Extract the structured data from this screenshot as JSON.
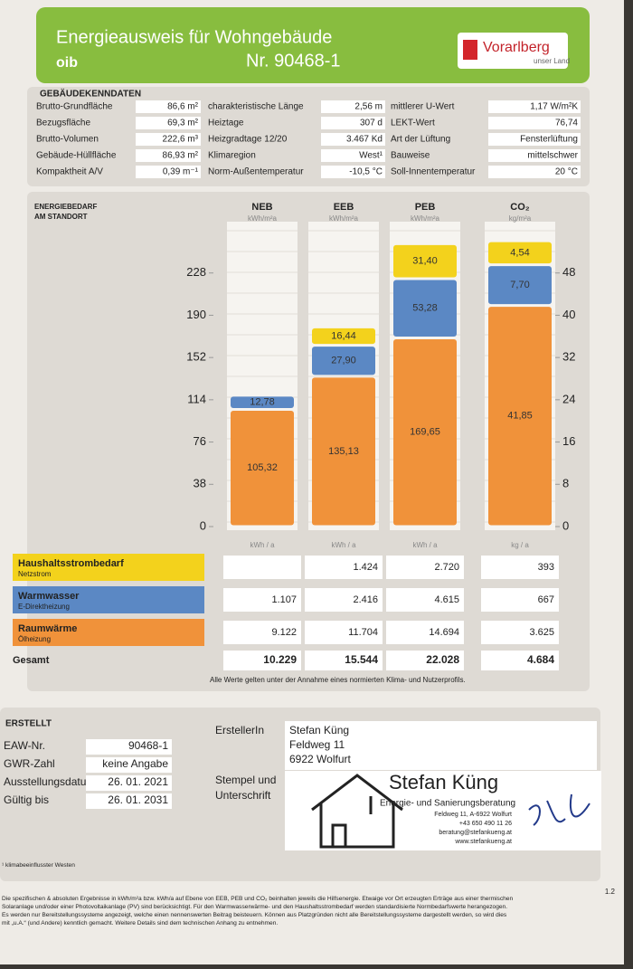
{
  "header": {
    "title": "Energieausweis für Wohngebäude",
    "number": "Nr. 90468-1",
    "logo": "oib",
    "region": "Vorarlberg",
    "region_tagline": "unser Land"
  },
  "building": {
    "title": "GEBÄUDEKENNDATEN",
    "columns": [
      [
        {
          "label": "Brutto-Grundfläche",
          "value": "86,6 m²"
        },
        {
          "label": "Bezugsfläche",
          "value": "69,3 m²"
        },
        {
          "label": "Brutto-Volumen",
          "value": "222,6 m³"
        },
        {
          "label": "Gebäude-Hüllfläche",
          "value": "86,93 m²"
        },
        {
          "label": "Kompaktheit A/V",
          "value": "0,39 m⁻¹"
        }
      ],
      [
        {
          "label": "charakteristische Länge",
          "value": "2,56 m"
        },
        {
          "label": "Heiztage",
          "value": "307 d"
        },
        {
          "label": "Heizgradtage 12/20",
          "value": "3.467 Kd"
        },
        {
          "label": "Klimaregion",
          "value": "West¹"
        },
        {
          "label": "Norm-Außentemperatur",
          "value": "-10,5 °C"
        }
      ],
      [
        {
          "label": "mittlerer U-Wert",
          "value": "1,17 W/m²K"
        },
        {
          "label": "LEKT-Wert",
          "value": "76,74"
        },
        {
          "label": "Art der Lüftung",
          "value": "Fensterlüftung"
        },
        {
          "label": "Bauweise",
          "value": "mittelschwer"
        },
        {
          "label": "Soll-Innentemperatur",
          "value": "20 °C"
        }
      ]
    ]
  },
  "energy": {
    "title_lines": [
      "ENERGIEBEDARF",
      "AM STANDORT"
    ],
    "note": "Alle Werte gelten unter der Annahme eines normierten Klima- und Nutzerprofils."
  },
  "chart_data": {
    "type": "stacked_bar",
    "categories": [
      "NEB",
      "EEB",
      "PEB",
      "CO₂"
    ],
    "category_units": [
      "kWh/m²a",
      "kWh/m²a",
      "kWh/m²a",
      "kg/m²a"
    ],
    "total_units": [
      "kWh / a",
      "kWh / a",
      "kWh / a",
      "kg / a"
    ],
    "category_axis": [
      "y",
      "y",
      "y",
      "y2"
    ],
    "ylim": [
      0,
      266
    ],
    "yticks": [
      0,
      38,
      76,
      114,
      152,
      190,
      228
    ],
    "y2lim": [
      0,
      56
    ],
    "y2ticks": [
      0,
      8,
      16,
      24,
      32,
      40,
      48
    ],
    "series": [
      {
        "name": "Raumwärme",
        "carrier": "Ölheizung",
        "color": "#f0923a",
        "values": [
          105.32,
          135.13,
          169.65,
          41.85
        ],
        "value_labels": [
          "105,32",
          "135,13",
          "169,65",
          "41,85"
        ]
      },
      {
        "name": "Warmwasser",
        "carrier": "E-Direktheizung",
        "color": "#5b88c4",
        "values": [
          12.78,
          27.9,
          53.28,
          7.7
        ],
        "value_labels": [
          "12,78",
          "27,90",
          "53,28",
          "7,70"
        ]
      },
      {
        "name": "Haushaltsstrombedarf",
        "carrier": "Netzstrom",
        "color": "#f3d21c",
        "values": [
          null,
          16.44,
          31.4,
          4.54
        ],
        "value_labels": [
          null,
          "16,44",
          "31,40",
          "4,54"
        ]
      }
    ]
  },
  "table": {
    "rows": [
      [
        null,
        "1.424",
        "2.720",
        "393"
      ],
      [
        "1.107",
        "2.416",
        "4.615",
        "667"
      ],
      [
        "9.122",
        "11.704",
        "14.694",
        "3.625"
      ]
    ],
    "total_label": "Gesamt",
    "totals": [
      "10.229",
      "15.544",
      "22.028",
      "4.684"
    ]
  },
  "issued": {
    "title": "ERSTELLT",
    "fields": [
      {
        "label": "EAW-Nr.",
        "value": "90468-1"
      },
      {
        "label": "GWR-Zahl",
        "value": "keine Angabe"
      },
      {
        "label": "Ausstellungsdatum",
        "value": "26. 01. 2021"
      },
      {
        "label": "Gültig bis",
        "value": "26. 01. 2031"
      }
    ],
    "creator_label": "ErstellerIn",
    "creator_lines": [
      "Stefan Küng",
      "Feldweg 11",
      "6922 Wolfurt"
    ],
    "stamp_label_lines": [
      "Stempel und",
      "Unterschrift"
    ],
    "stamp": {
      "name": "Stefan Küng",
      "subtitle": "Energie- und Sanierungsberatung",
      "lines": [
        "Feldweg 11, A-6922 Wolfurt",
        "+43 650 490 11 26",
        "beratung@stefankueng.at",
        "www.stefankueng.at"
      ]
    }
  },
  "footnotes": {
    "lines": [
      "¹ klimabeeinflusster Westen",
      "Die spezifischen & absoluten Ergebnisse in kWh/m²a bzw. kWh/a auf Ebene von EEB, PEB und CO₂ beinhalten jeweils die Hilfsenergie. Etwaige vor Ort erzeugten Erträge aus einer thermischen",
      "Solaranlage und/oder einer Photovoltaikanlage (PV) sind berücksichtigt. Für den Warmwasserwärme- und den Haushaltsstrombedarf werden standardisierte Normbedarfswerte herangezogen.",
      "Es werden nur Bereitstellungssysteme angezeigt, welche einen nennenswerten Beitrag beisteuern. Können aus Platzgründen nicht alle Bereitstellungssysteme dargestellt werden, so wird dies",
      "mit „u.A.“ (und Andere) kenntlich gemacht. Weitere Details sind dem technischen Anhang zu entnehmen."
    ],
    "page": "1.2"
  }
}
